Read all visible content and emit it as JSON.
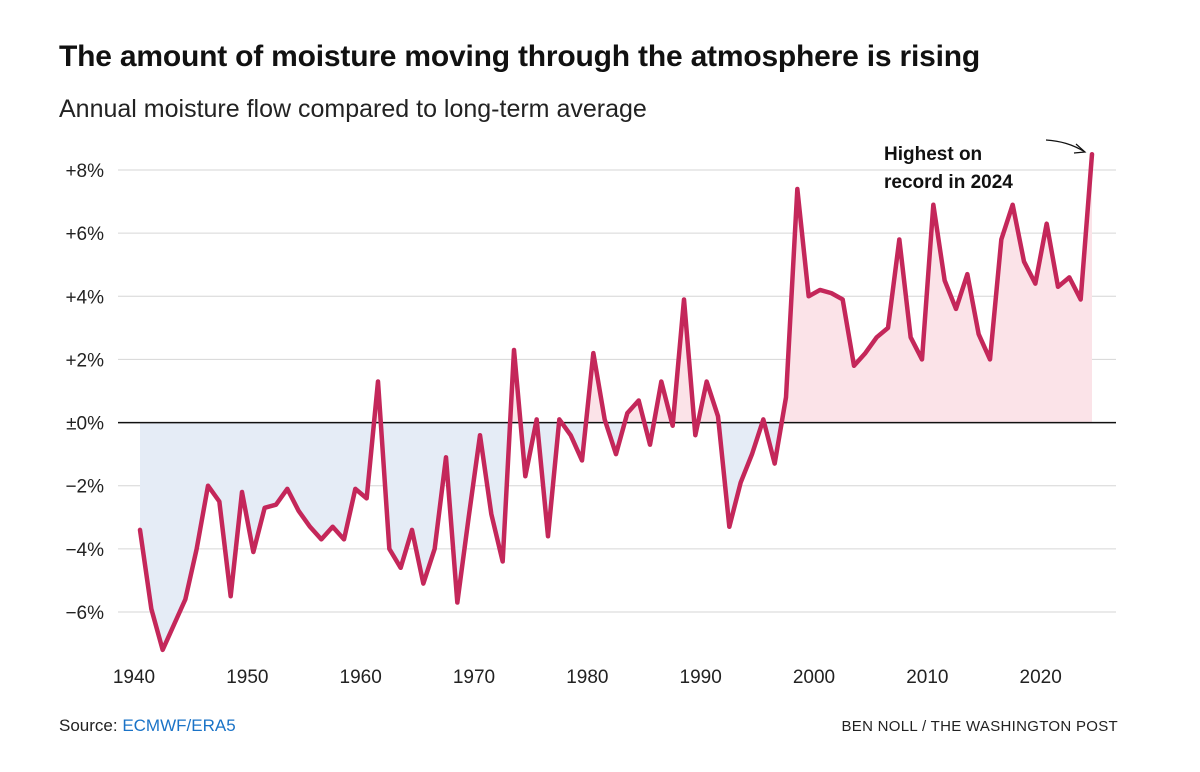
{
  "header": {
    "title": "The amount of moisture moving through the atmosphere is rising",
    "subtitle": "Annual moisture flow compared to long-term average"
  },
  "footer": {
    "source_prefix": "Source: ",
    "source_link": "ECMWF/ERA5",
    "credit": "BEN NOLL / THE WASHINGTON POST"
  },
  "colors": {
    "line": "#c4275a",
    "positive_fill": "#fbe3e8",
    "negative_fill": "#e5ecf6",
    "gridline": "#d6d6d6",
    "zero_line": "#111111",
    "link": "#1a73c7"
  },
  "chart_data": {
    "type": "area",
    "title": "The amount of moisture moving through the atmosphere is rising",
    "subtitle": "Annual moisture flow compared to long-term average",
    "xlabel": "",
    "ylabel": "",
    "xlim": [
      1940,
      2024
    ],
    "ylim": [
      -7.3,
      8.5
    ],
    "x_ticks": [
      1940,
      1950,
      1960,
      1970,
      1980,
      1990,
      2000,
      2010,
      2020
    ],
    "y_ticks": [
      {
        "value": 8,
        "label": "+8%"
      },
      {
        "value": 6,
        "label": "+6%"
      },
      {
        "value": 4,
        "label": "+4%"
      },
      {
        "value": 2,
        "label": "+2%"
      },
      {
        "value": 0,
        "label": "±0%"
      },
      {
        "value": -2,
        "label": "−2%"
      },
      {
        "value": -4,
        "label": "−4%"
      },
      {
        "value": -6,
        "label": "−6%"
      }
    ],
    "grid": true,
    "series": [
      {
        "name": "Annual moisture flow anomaly (%)",
        "x": [
          1940,
          1941,
          1942,
          1943,
          1944,
          1945,
          1946,
          1947,
          1948,
          1949,
          1950,
          1951,
          1952,
          1953,
          1954,
          1955,
          1956,
          1957,
          1958,
          1959,
          1960,
          1961,
          1962,
          1963,
          1964,
          1965,
          1966,
          1967,
          1968,
          1969,
          1970,
          1971,
          1972,
          1973,
          1974,
          1975,
          1976,
          1977,
          1978,
          1979,
          1980,
          1981,
          1982,
          1983,
          1984,
          1985,
          1986,
          1987,
          1988,
          1989,
          1990,
          1991,
          1992,
          1993,
          1994,
          1995,
          1996,
          1997,
          1998,
          1999,
          2000,
          2001,
          2002,
          2003,
          2004,
          2005,
          2006,
          2007,
          2008,
          2009,
          2010,
          2011,
          2012,
          2013,
          2014,
          2015,
          2016,
          2017,
          2018,
          2019,
          2020,
          2021,
          2022,
          2023,
          2024
        ],
        "values": [
          -3.4,
          -5.9,
          -7.2,
          -6.4,
          -5.6,
          -4.0,
          -2.0,
          -2.5,
          -5.5,
          -2.2,
          -4.1,
          -2.7,
          -2.6,
          -2.1,
          -2.8,
          -3.3,
          -3.7,
          -3.3,
          -3.7,
          -2.1,
          -2.4,
          1.3,
          -4.0,
          -4.6,
          -3.4,
          -5.1,
          -4.0,
          -1.1,
          -5.7,
          -3.0,
          -0.4,
          -2.9,
          -4.4,
          2.3,
          -1.7,
          0.1,
          -3.6,
          0.1,
          -0.4,
          -1.2,
          2.2,
          0.1,
          -1.0,
          0.3,
          0.7,
          -0.7,
          1.3,
          -0.1,
          3.9,
          -0.4,
          1.3,
          0.2,
          -3.3,
          -1.9,
          -1.0,
          0.1,
          -1.3,
          0.8,
          7.4,
          4.0,
          4.2,
          4.1,
          3.9,
          1.8,
          2.2,
          2.7,
          3.0,
          5.8,
          2.7,
          2.0,
          6.9,
          4.5,
          3.6,
          4.7,
          2.8,
          2.0,
          5.8,
          6.9,
          5.1,
          4.4,
          6.3,
          4.3,
          4.6,
          3.9,
          8.5
        ]
      }
    ],
    "annotations": [
      {
        "text_line1": "Highest on",
        "text_line2": "record in 2024",
        "x": 2024,
        "y": 8.5
      }
    ]
  }
}
